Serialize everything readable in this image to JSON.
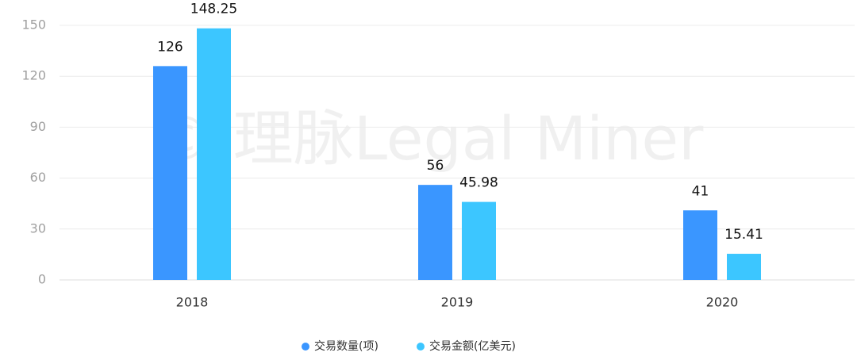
{
  "chart_data": {
    "type": "bar",
    "watermark": "© 理脉Legal Miner",
    "categories": [
      "2018",
      "2019",
      "2020"
    ],
    "series": [
      {
        "name": "交易数量(项)",
        "color": "#3a96ff",
        "values": [
          126,
          56,
          41
        ]
      },
      {
        "name": "交易金额(亿美元)",
        "color": "#3cc6ff",
        "values": [
          148.25,
          45.98,
          15.41
        ]
      }
    ],
    "ylim": [
      0,
      150
    ],
    "yticks": [
      0,
      30,
      60,
      90,
      120,
      150
    ],
    "grid": true,
    "legend": "bottom"
  }
}
